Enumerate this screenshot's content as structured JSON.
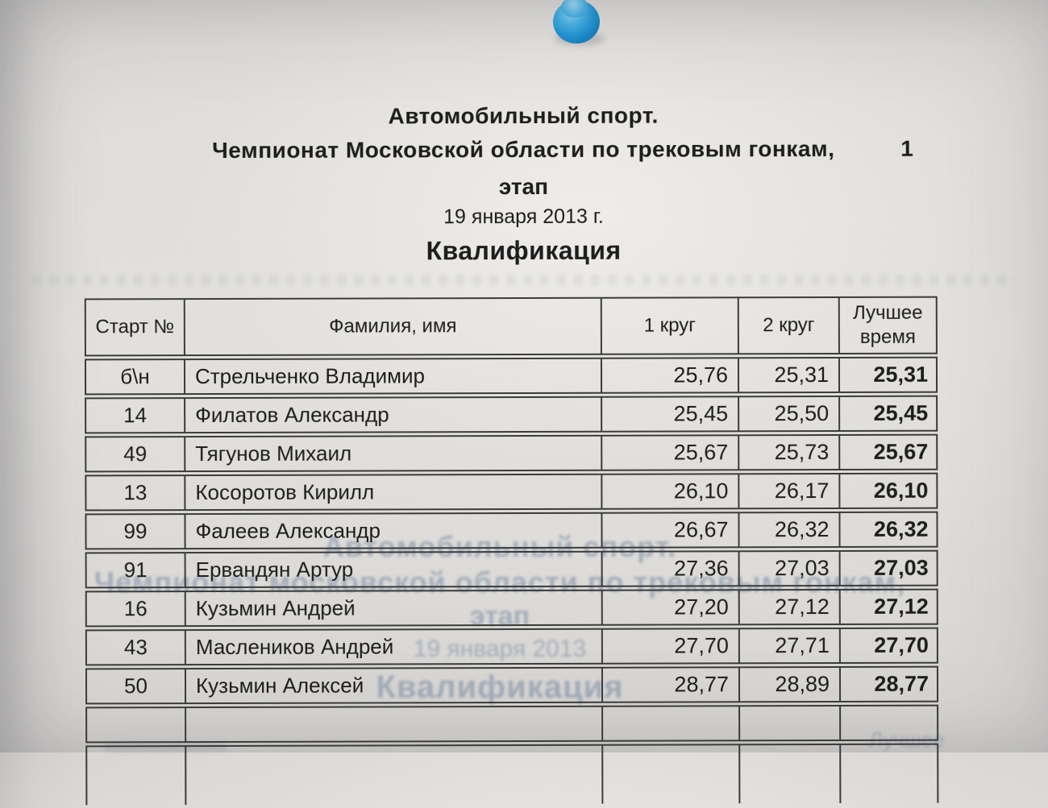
{
  "header": {
    "line1": "Автомобильный спорт.",
    "line2": "Чемпионат Московской области по трековым гонкам,",
    "stage_number": "1",
    "line3": "этап",
    "date": "19 января 2013 г.",
    "section": "Квалификация"
  },
  "table": {
    "columns": [
      "Старт №",
      "Фамилия, имя",
      "1 круг",
      "2 круг",
      "Лучшее время"
    ],
    "rows": [
      {
        "start": "б\\н",
        "name": "Стрельченко Владимир",
        "lap1": "25,76",
        "lap2": "25,31",
        "best": "25,31"
      },
      {
        "start": "14",
        "name": "Филатов Александр",
        "lap1": "25,45",
        "lap2": "25,50",
        "best": "25,45"
      },
      {
        "start": "49",
        "name": "Тягунов Михаил",
        "lap1": "25,67",
        "lap2": "25,73",
        "best": "25,67"
      },
      {
        "start": "13",
        "name": "Косоротов Кирилл",
        "lap1": "26,10",
        "lap2": "26,17",
        "best": "26,10"
      },
      {
        "start": "99",
        "name": "Фалеев Александр",
        "lap1": "26,67",
        "lap2": "26,32",
        "best": "26,32"
      },
      {
        "start": "91",
        "name": "Ервандян Артур",
        "lap1": "27,36",
        "lap2": "27,03",
        "best": "27,03"
      },
      {
        "start": "16",
        "name": "Кузьмин Андрей",
        "lap1": "27,20",
        "lap2": "27,12",
        "best": "27,12"
      },
      {
        "start": "43",
        "name": "Маслеников Андрей",
        "lap1": "27,70",
        "lap2": "27,71",
        "best": "27,70"
      },
      {
        "start": "50",
        "name": "Кузьмин Алексей",
        "lap1": "28,77",
        "lap2": "28,89",
        "best": "28,77"
      }
    ]
  },
  "bleedthrough": {
    "line1": "Автомобильный спорт.",
    "line2": "Чемпионат московской области по трековым гонкам,",
    "line3": "этап",
    "line4": "19 января 2013",
    "line5": "Квалификация",
    "bottom_right": "Лучшее"
  },
  "colors": {
    "pushpin": "#2196d6",
    "paper": "#dedcd9",
    "ink": "#1d1d1d",
    "ghost_text": "#7689a4",
    "table_border": "#3b3b3b"
  }
}
